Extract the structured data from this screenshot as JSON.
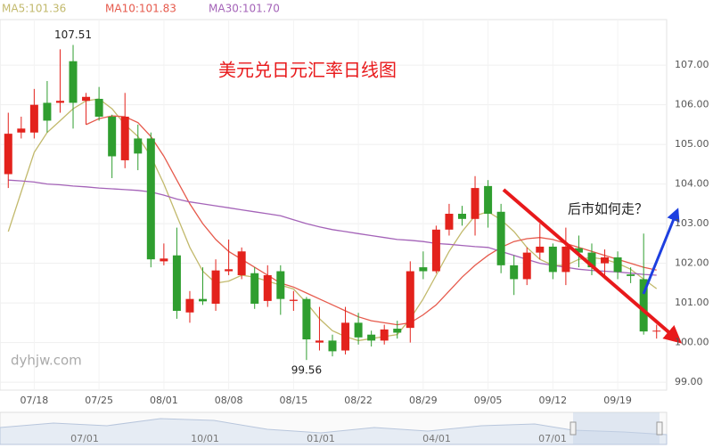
{
  "chart_data": {
    "type": "candlestick",
    "title": "美元兑日元汇率日线图",
    "annotation": "后市如何走？",
    "watermark": "dyhjw.com",
    "high_label": "107.51",
    "low_label": "99.56",
    "up_color": "#e3221c",
    "down_color": "#2f9e2f",
    "categories": [
      null,
      null,
      "07/18",
      null,
      null,
      null,
      null,
      "07/25",
      null,
      null,
      null,
      null,
      "08/01",
      null,
      null,
      null,
      null,
      "08/08",
      null,
      null,
      null,
      null,
      "08/15",
      null,
      null,
      null,
      null,
      "08/22",
      null,
      null,
      null,
      null,
      "08/29",
      null,
      null,
      null,
      null,
      "09/05",
      null,
      null,
      null,
      null,
      "09/12",
      null,
      null,
      null,
      null,
      "09/19",
      null,
      null,
      null
    ],
    "open": [
      104.25,
      105.3,
      105.3,
      106.05,
      106.05,
      107.1,
      106.1,
      106.15,
      105.7,
      104.6,
      105.15,
      105.15,
      102.05,
      102.2,
      100.76,
      101.1,
      100.98,
      101.8,
      101.7,
      101.75,
      101.05,
      101.8,
      101.05,
      101.1,
      100.0,
      100.05,
      99.8,
      100.5,
      100.2,
      100.05,
      100.35,
      100.37,
      101.9,
      101.8,
      102.85,
      103.25,
      103.12,
      103.95,
      103.3,
      101.95,
      101.6,
      102.27,
      102.42,
      101.78,
      102.38,
      102.27,
      102.0,
      102.15,
      101.72,
      101.6,
      100.28
    ],
    "high": [
      105.8,
      105.7,
      106.4,
      106.6,
      107.4,
      107.51,
      106.3,
      106.45,
      105.75,
      106.3,
      105.5,
      105.3,
      102.5,
      102.9,
      101.3,
      101.9,
      102.1,
      102.6,
      102.4,
      101.9,
      101.95,
      101.95,
      101.3,
      101.15,
      100.9,
      100.2,
      100.9,
      100.75,
      100.3,
      100.45,
      100.55,
      102.05,
      102.3,
      102.95,
      103.5,
      103.45,
      104.2,
      104.1,
      103.5,
      102.2,
      102.4,
      103.0,
      102.5,
      102.9,
      102.7,
      102.5,
      102.35,
      102.3,
      101.9,
      102.75,
      100.45
    ],
    "low": [
      103.9,
      105.15,
      105.15,
      105.3,
      105.8,
      105.4,
      105.5,
      105.6,
      104.15,
      104.4,
      104.35,
      101.9,
      101.95,
      100.6,
      100.5,
      100.95,
      100.8,
      101.7,
      101.6,
      100.85,
      100.9,
      100.7,
      100.8,
      99.56,
      99.8,
      99.65,
      99.7,
      99.95,
      99.9,
      99.95,
      100.1,
      100.0,
      101.6,
      101.75,
      102.7,
      102.95,
      102.7,
      102.9,
      101.75,
      101.2,
      101.45,
      102.1,
      101.6,
      101.45,
      101.9,
      101.7,
      101.6,
      101.6,
      101.5,
      100.2,
      100.1
    ],
    "close": [
      105.27,
      105.4,
      106.0,
      105.6,
      106.1,
      106.05,
      106.2,
      105.7,
      104.7,
      105.7,
      104.77,
      102.1,
      102.12,
      100.8,
      101.1,
      101.04,
      101.82,
      101.85,
      102.3,
      100.98,
      101.7,
      101.1,
      101.08,
      100.08,
      100.05,
      99.78,
      100.5,
      100.13,
      100.05,
      100.33,
      100.25,
      101.8,
      101.8,
      102.85,
      103.25,
      103.12,
      103.9,
      103.25,
      101.95,
      101.6,
      102.27,
      102.42,
      101.78,
      102.42,
      102.27,
      101.9,
      102.15,
      101.78,
      101.68,
      100.28,
      100.3
    ],
    "series": [
      {
        "name": "MA5:101.36",
        "color": "#c2b96c",
        "values": [
          102.8,
          103.8,
          104.8,
          105.3,
          105.6,
          105.9,
          106.1,
          106.15,
          105.9,
          105.5,
          105.2,
          104.7,
          104.0,
          103.2,
          102.4,
          101.8,
          101.5,
          101.55,
          101.7,
          101.65,
          101.55,
          101.45,
          101.35,
          101.0,
          100.6,
          100.3,
          100.15,
          100.05,
          100.1,
          100.15,
          100.2,
          100.6,
          101.1,
          101.7,
          102.3,
          102.8,
          103.2,
          103.3,
          103.1,
          102.8,
          102.4,
          102.1,
          101.95,
          101.95,
          102.1,
          102.15,
          102.1,
          102.0,
          101.85,
          101.6,
          101.36
        ]
      },
      {
        "name": "MA10:101.83",
        "color": "#e65a4c",
        "values": [
          null,
          null,
          null,
          null,
          null,
          null,
          105.5,
          105.65,
          105.72,
          105.7,
          105.55,
          105.2,
          104.7,
          104.1,
          103.5,
          103.0,
          102.6,
          102.3,
          102.1,
          101.9,
          101.7,
          101.5,
          101.4,
          101.25,
          101.1,
          100.95,
          100.8,
          100.65,
          100.55,
          100.5,
          100.45,
          100.5,
          100.7,
          100.95,
          101.3,
          101.65,
          101.95,
          102.2,
          102.4,
          102.55,
          102.62,
          102.65,
          102.6,
          102.5,
          102.4,
          102.3,
          102.2,
          102.1,
          102.0,
          101.9,
          101.83
        ]
      },
      {
        "name": "MA30:101.70",
        "color": "#a463b8",
        "values": [
          104.1,
          104.08,
          104.05,
          104.0,
          103.98,
          103.95,
          103.93,
          103.9,
          103.88,
          103.86,
          103.84,
          103.8,
          103.72,
          103.62,
          103.55,
          103.5,
          103.45,
          103.4,
          103.35,
          103.3,
          103.25,
          103.2,
          103.1,
          103.0,
          102.92,
          102.85,
          102.8,
          102.75,
          102.7,
          102.65,
          102.6,
          102.58,
          102.55,
          102.5,
          102.48,
          102.45,
          102.42,
          102.4,
          102.3,
          102.2,
          102.1,
          102.0,
          101.95,
          101.9,
          101.85,
          101.82,
          101.8,
          101.78,
          101.75,
          101.72,
          101.7
        ]
      }
    ],
    "ylim": [
      98.8,
      108.15
    ],
    "yticks": [
      {
        "value": 99,
        "label": "99.00"
      },
      {
        "value": 100,
        "label": "100.00"
      },
      {
        "value": 101,
        "label": "101.00"
      },
      {
        "value": 102,
        "label": "102.00"
      },
      {
        "value": 103,
        "label": "103.00"
      },
      {
        "value": 104,
        "label": "104.00"
      },
      {
        "value": 105,
        "label": "105.00"
      },
      {
        "value": 106,
        "label": "106.00"
      },
      {
        "value": 107,
        "label": "107.00"
      }
    ],
    "grid": true,
    "navigator_labels": [
      "07/01",
      "10/01",
      "01/01",
      "04/01",
      "07/01"
    ]
  }
}
